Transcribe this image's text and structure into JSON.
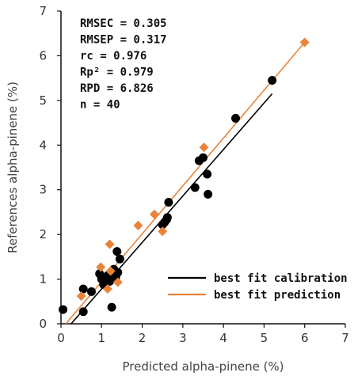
{
  "chart_data": {
    "type": "scatter",
    "xlabel": "Predicted alpha-pinene (%)",
    "ylabel": "References alpha-pinene (%)",
    "xlim": [
      0,
      7
    ],
    "ylim": [
      0,
      7
    ],
    "xticks": [
      "0",
      "1",
      "2",
      "3",
      "4",
      "5",
      "6",
      "7"
    ],
    "yticks": [
      "0",
      "1",
      "2",
      "3",
      "4",
      "5",
      "6",
      "7"
    ],
    "stats": [
      "RMSEC = 0.305",
      "RMSEP = 0.317",
      "rc = 0.976",
      "Rp² = 0.979",
      "RPD = 6.826",
      "n = 40"
    ],
    "legend_position": "bottom-right",
    "series": [
      {
        "name": "best fit calibration",
        "color": "#000000",
        "marker": "circle",
        "points": [
          [
            0.05,
            0.32
          ],
          [
            0.55,
            0.27
          ],
          [
            0.55,
            0.78
          ],
          [
            0.75,
            0.72
          ],
          [
            0.95,
            1.12
          ],
          [
            1.0,
            1.0
          ],
          [
            1.05,
            0.88
          ],
          [
            1.1,
            0.97
          ],
          [
            1.15,
            1.08
          ],
          [
            1.2,
            1.02
          ],
          [
            1.2,
            0.95
          ],
          [
            1.25,
            0.37
          ],
          [
            1.3,
            1.22
          ],
          [
            1.35,
            1.05
          ],
          [
            1.38,
            1.62
          ],
          [
            1.45,
            1.45
          ],
          [
            1.4,
            1.15
          ],
          [
            2.5,
            2.22
          ],
          [
            2.55,
            2.27
          ],
          [
            2.6,
            2.33
          ],
          [
            2.62,
            2.38
          ],
          [
            2.65,
            2.72
          ],
          [
            3.3,
            3.05
          ],
          [
            3.4,
            3.65
          ],
          [
            3.5,
            3.72
          ],
          [
            3.6,
            3.35
          ],
          [
            3.62,
            2.9
          ],
          [
            4.3,
            4.6
          ],
          [
            5.2,
            5.45
          ]
        ],
        "fit_line": {
          "x": [
            0.25,
            5.2
          ],
          "y": [
            0.0,
            5.15
          ]
        }
      },
      {
        "name": "best fit prediction",
        "color": "#e8843a",
        "marker": "diamond",
        "points": [
          [
            0.5,
            0.62
          ],
          [
            0.98,
            1.27
          ],
          [
            1.15,
            0.78
          ],
          [
            1.2,
            1.78
          ],
          [
            1.22,
            1.18
          ],
          [
            1.4,
            0.93
          ],
          [
            1.9,
            2.2
          ],
          [
            2.3,
            2.45
          ],
          [
            2.5,
            2.07
          ],
          [
            3.52,
            3.95
          ],
          [
            6.0,
            6.3
          ]
        ],
        "fit_line": {
          "x": [
            0.12,
            6.0
          ],
          "y": [
            0.0,
            6.3
          ]
        }
      }
    ]
  }
}
